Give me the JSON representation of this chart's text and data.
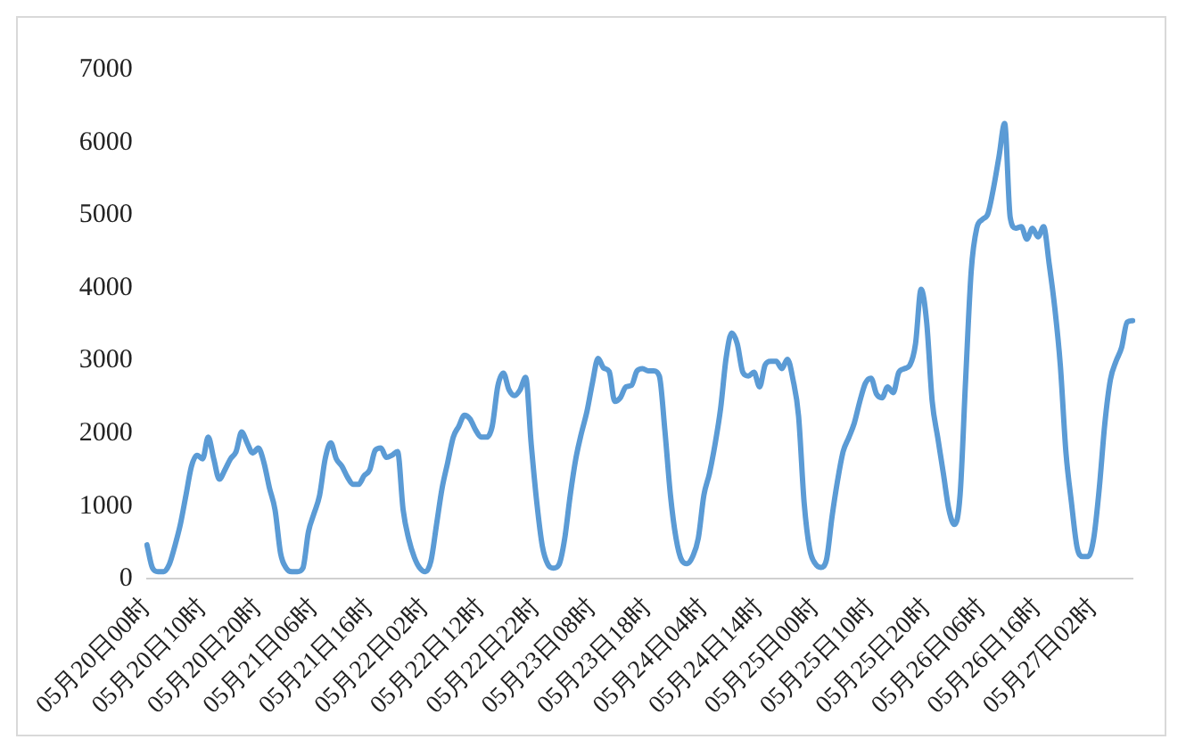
{
  "chart_data": {
    "type": "line",
    "categories": [
      "05月20日00时",
      null,
      null,
      null,
      null,
      null,
      null,
      null,
      null,
      null,
      "05月20日10时",
      null,
      null,
      null,
      null,
      null,
      null,
      null,
      null,
      null,
      "05月20日20时",
      null,
      null,
      null,
      null,
      null,
      null,
      null,
      null,
      null,
      "05月21日06时",
      null,
      null,
      null,
      null,
      null,
      null,
      null,
      null,
      null,
      "05月21日16时",
      null,
      null,
      null,
      null,
      null,
      null,
      null,
      null,
      null,
      "05月22日02时",
      null,
      null,
      null,
      null,
      null,
      null,
      null,
      null,
      null,
      "05月22日12时",
      null,
      null,
      null,
      null,
      null,
      null,
      null,
      null,
      null,
      "05月22日22时",
      null,
      null,
      null,
      null,
      null,
      null,
      null,
      null,
      null,
      "05月23日08时",
      null,
      null,
      null,
      null,
      null,
      null,
      null,
      null,
      null,
      "05月23日18时",
      null,
      null,
      null,
      null,
      null,
      null,
      null,
      null,
      null,
      "05月24日04时",
      null,
      null,
      null,
      null,
      null,
      null,
      null,
      null,
      null,
      "05月24日14时",
      null,
      null,
      null,
      null,
      null,
      null,
      null,
      null,
      null,
      "05月25日00时",
      null,
      null,
      null,
      null,
      null,
      null,
      null,
      null,
      null,
      "05月25日10时",
      null,
      null,
      null,
      null,
      null,
      null,
      null,
      null,
      null,
      "05月25日20时",
      null,
      null,
      null,
      null,
      null,
      null,
      null,
      null,
      null,
      "05月26日06时",
      null,
      null,
      null,
      null,
      null,
      null,
      null,
      null,
      null,
      "05月26日16时",
      null,
      null,
      null,
      null,
      null,
      null,
      null,
      null,
      null,
      "05月27日02时",
      null,
      null,
      null,
      null,
      null,
      null,
      null
    ],
    "series": [
      {
        "color": "#5b9bd5",
        "values": [
          470,
          150,
          100,
          100,
          200,
          450,
          750,
          1150,
          1550,
          1700,
          1650,
          1950,
          1650,
          1370,
          1500,
          1650,
          1750,
          2020,
          1870,
          1730,
          1800,
          1600,
          1250,
          950,
          350,
          150,
          100,
          100,
          150,
          650,
          900,
          1150,
          1650,
          1870,
          1650,
          1550,
          1400,
          1300,
          1300,
          1420,
          1500,
          1770,
          1800,
          1670,
          1700,
          1750,
          950,
          550,
          300,
          150,
          100,
          250,
          750,
          1250,
          1600,
          1950,
          2100,
          2250,
          2200,
          2050,
          1950,
          1950,
          2100,
          2650,
          2830,
          2600,
          2520,
          2600,
          2770,
          1850,
          1050,
          450,
          200,
          150,
          200,
          550,
          1150,
          1650,
          2000,
          2300,
          2700,
          3030,
          2900,
          2850,
          2440,
          2490,
          2640,
          2660,
          2860,
          2890,
          2860,
          2860,
          2790,
          2040,
          1150,
          560,
          260,
          210,
          310,
          560,
          1150,
          1450,
          1850,
          2340,
          3040,
          3380,
          3230,
          2840,
          2790,
          2840,
          2640,
          2940,
          2990,
          2990,
          2890,
          3020,
          2740,
          2240,
          1050,
          410,
          210,
          160,
          260,
          850,
          1350,
          1750,
          1940,
          2140,
          2440,
          2690,
          2760,
          2540,
          2490,
          2640,
          2560,
          2840,
          2890,
          2940,
          3230,
          3980,
          3530,
          2440,
          1940,
          1450,
          950,
          750,
          1150,
          2740,
          4230,
          4820,
          4940,
          5020,
          5370,
          5810,
          6260,
          4970,
          4820,
          4840,
          4670,
          4820,
          4700,
          4840,
          4330,
          3730,
          2940,
          1750,
          1050,
          440,
          310,
          310,
          560,
          1250,
          2140,
          2740,
          2990,
          3180,
          3530,
          3550
        ]
      }
    ],
    "ylim": [
      0,
      7000
    ],
    "yticks": [
      0,
      1000,
      2000,
      3000,
      4000,
      5000,
      6000,
      7000
    ],
    "grid": false,
    "legend": false,
    "marker": "none",
    "line_style": "solid"
  }
}
